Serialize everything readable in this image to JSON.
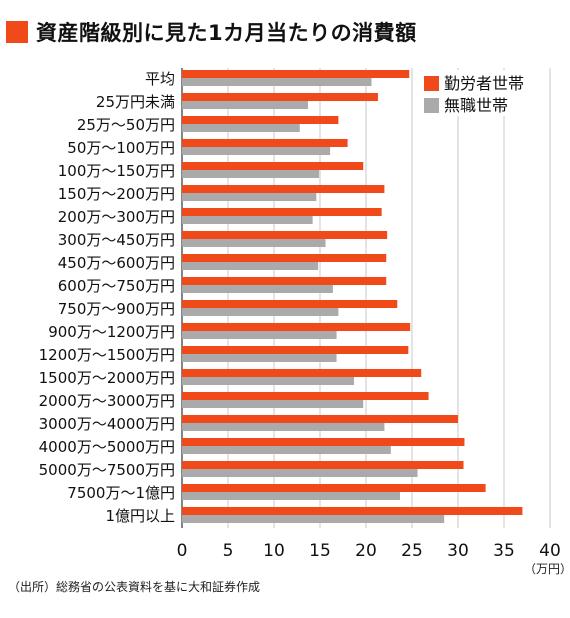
{
  "title": "資産階級別に見た1カ月当たりの消費額",
  "source": "（出所）総務省の公表資料を基に大和証券作成",
  "colors": {
    "accent": "#f04a1a",
    "secondary": "#aaaaaa",
    "grid": "#c8c8c8"
  },
  "chart_data": {
    "type": "bar",
    "orientation": "horizontal",
    "categories": [
      "平均",
      "25万円未満",
      "25万～50万円",
      "50万～100万円",
      "100万～150万円",
      "150万～200万円",
      "200万～300万円",
      "300万～450万円",
      "450万～600万円",
      "600万～750万円",
      "750万～900万円",
      "900万～1200万円",
      "1200万～1500万円",
      "1500万～2000万円",
      "2000万～3000万円",
      "3000万～4000万円",
      "4000万～5000万円",
      "5000万～7500万円",
      "7500万～1億円",
      "1億円以上"
    ],
    "series": [
      {
        "name": "勤労者世帯",
        "color": "#f04a1a",
        "values": [
          24.7,
          21.3,
          17.0,
          18.0,
          19.7,
          22.0,
          21.7,
          22.3,
          22.2,
          22.2,
          23.4,
          24.8,
          24.6,
          26.0,
          26.8,
          30.0,
          30.7,
          30.6,
          33.0,
          37.0
        ]
      },
      {
        "name": "無職世帯",
        "color": "#aaaaaa",
        "values": [
          20.6,
          13.7,
          12.8,
          16.1,
          14.9,
          14.6,
          14.2,
          15.6,
          14.8,
          16.4,
          17.0,
          16.8,
          16.8,
          18.7,
          19.7,
          22.0,
          22.7,
          25.6,
          23.7,
          28.5
        ]
      }
    ],
    "xlim": [
      0,
      40
    ],
    "xticks": [
      "0",
      "5",
      "10",
      "15",
      "20",
      "25",
      "30",
      "35",
      "40"
    ],
    "unit_label": "（万円）",
    "grid": true,
    "legend_position": "top-right"
  }
}
